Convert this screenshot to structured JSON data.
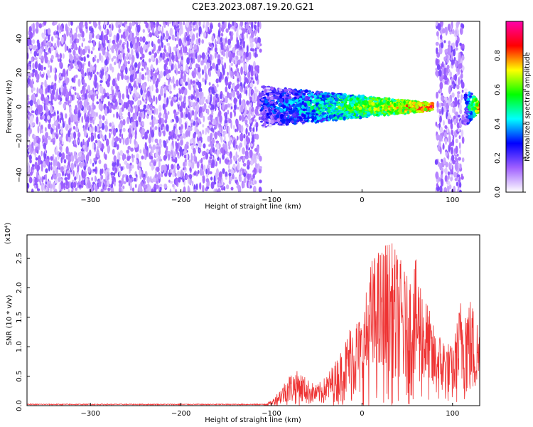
{
  "title": "C2E3.2023.087.19.20.G21",
  "chart_data": [
    {
      "type": "heatmap",
      "xlabel": "Height of straight line (km)",
      "ylabel": "Frequency (Hz)",
      "xlim": [
        -370,
        130
      ],
      "ylim": [
        -50,
        50
      ],
      "x_ticks": [
        -300,
        -200,
        -100,
        0,
        100
      ],
      "y_ticks": [
        -40,
        -20,
        0,
        20,
        40
      ],
      "colorbar": {
        "label": "Normalized spectral amplitude",
        "range": [
          0.0,
          1.0
        ],
        "ticks": [
          "0.0",
          "0.2",
          "0.4",
          "0.6",
          "0.8"
        ],
        "colors": [
          "#ffffff",
          "#a060ff",
          "#0000ff",
          "#00ffff",
          "#00ff00",
          "#ffff00",
          "#ff0000",
          "#ff00aa"
        ]
      },
      "regions": [
        {
          "x": [
            -370,
            -112
          ],
          "description": "noise"
        },
        {
          "x": [
            -112,
            78
          ],
          "description": "signal near 0 Hz"
        },
        {
          "x": [
            82,
            112
          ],
          "description": "noise"
        },
        {
          "x": [
            114,
            130
          ],
          "description": "signal near 0 Hz"
        }
      ]
    },
    {
      "type": "line",
      "xlabel": "Height of straight line (km)",
      "ylabel": "SNR (10 * v/v)",
      "yscale_label": "(x10⁴)",
      "xlim": [
        -370,
        130
      ],
      "ylim": [
        0,
        2.9
      ],
      "x_ticks": [
        -300,
        -200,
        -100,
        0,
        100
      ],
      "y_ticks": [
        "0.0",
        "0.5",
        "1.0",
        "1.5",
        "2.0",
        "2.5"
      ],
      "series_color": "#ee3333",
      "envelope": {
        "x": [
          -370,
          -110,
          -100,
          -90,
          -80,
          -70,
          -60,
          -50,
          -40,
          -30,
          -20,
          -10,
          0,
          10,
          20,
          30,
          40,
          50,
          60,
          70,
          80,
          90,
          100,
          110,
          120,
          130
        ],
        "y": [
          0.03,
          0.03,
          0.08,
          0.3,
          0.55,
          0.6,
          0.45,
          0.35,
          0.5,
          0.75,
          1.05,
          1.55,
          1.5,
          2.5,
          2.7,
          2.85,
          2.6,
          2.2,
          2.5,
          1.9,
          1.3,
          1.2,
          1.0,
          1.95,
          1.85,
          1.4
        ]
      }
    }
  ]
}
